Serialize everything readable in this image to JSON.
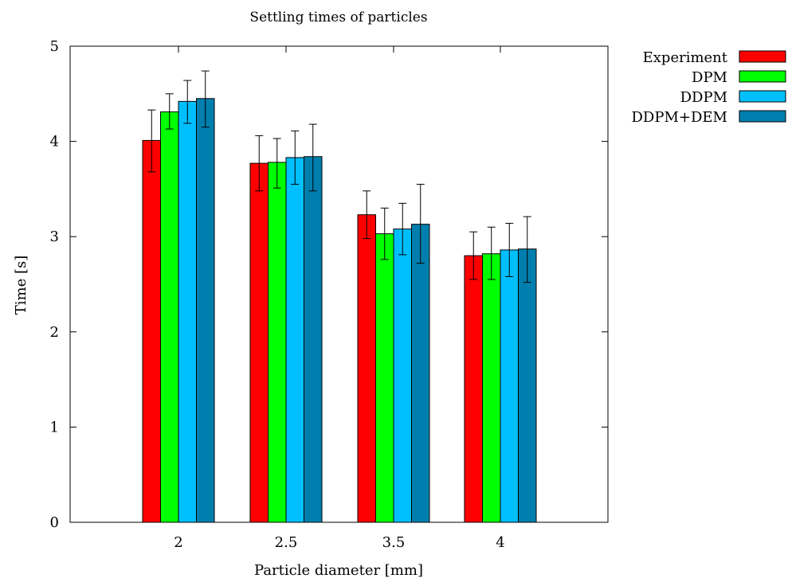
{
  "chart_data": {
    "type": "bar",
    "title": "Settling times of particles",
    "xlabel": "Particle diameter [mm]",
    "ylabel": "Time [s]",
    "ylim": [
      0,
      5
    ],
    "yticks": [
      "0",
      "1",
      "2",
      "3",
      "4",
      "5"
    ],
    "categories": [
      "2",
      "2.5",
      "3.5",
      "4"
    ],
    "grid": false,
    "legend_position": "outside-top-right",
    "series": [
      {
        "name": "Experiment",
        "color": "#ff0000",
        "values": [
          4.01,
          3.77,
          3.23,
          2.8
        ],
        "errors": [
          [
            3.68,
            4.33
          ],
          [
            3.48,
            4.06
          ],
          [
            2.98,
            3.48
          ],
          [
            2.55,
            3.05
          ]
        ]
      },
      {
        "name": "DPM",
        "color": "#00ff00",
        "values": [
          4.31,
          3.78,
          3.03,
          2.82
        ],
        "errors": [
          [
            4.13,
            4.5
          ],
          [
            3.51,
            4.03
          ],
          [
            2.76,
            3.3
          ],
          [
            2.55,
            3.1
          ]
        ]
      },
      {
        "name": "DDPM",
        "color": "#00bfff",
        "values": [
          4.42,
          3.83,
          3.08,
          2.86
        ],
        "errors": [
          [
            4.19,
            4.64
          ],
          [
            3.55,
            4.11
          ],
          [
            2.81,
            3.35
          ],
          [
            2.58,
            3.14
          ]
        ]
      },
      {
        "name": "DDPM+DEM",
        "color": "#007fae",
        "values": [
          4.45,
          3.84,
          3.13,
          2.87
        ],
        "errors": [
          [
            4.15,
            4.74
          ],
          [
            3.48,
            4.18
          ],
          [
            2.72,
            3.55
          ],
          [
            2.52,
            3.21
          ]
        ]
      }
    ]
  }
}
